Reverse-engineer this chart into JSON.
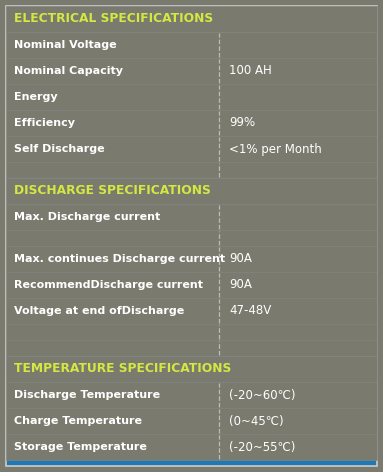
{
  "bg_color": "#7a7a6e",
  "header_text_color": "#d4e842",
  "row_text_color": "#ffffff",
  "value_text_color": "#ffffff",
  "border_color": "#888880",
  "divider_color": "#bbbbbb",
  "outer_border_color": "#cccccc",
  "col_split": 0.575,
  "sections": [
    {
      "header": "ELECTRICAL SPECIFICATIONS",
      "rows": [
        {
          "label": "Nominal Voltage",
          "value": "",
          "gap": false
        },
        {
          "label": "Nominal Capacity",
          "value": "100 AH",
          "gap": false
        },
        {
          "label": "Energy",
          "value": "",
          "gap": false
        },
        {
          "label": "Efficiency",
          "value": "99%",
          "gap": false
        },
        {
          "label": "Self Discharge",
          "value": "<1% per Month",
          "gap": false
        },
        {
          "label": "",
          "value": "",
          "gap": true
        }
      ]
    },
    {
      "header": "DISCHARGE SPECIFICATIONS",
      "rows": [
        {
          "label": "Max. Discharge current",
          "value": "",
          "gap": false
        },
        {
          "label": "",
          "value": "",
          "gap": true
        },
        {
          "label": "Max. continues Discharge current",
          "value": "90A",
          "gap": false
        },
        {
          "label": "RecommendDischarge current",
          "value": "90A",
          "gap": false
        },
        {
          "label": "Voltage at end ofDischarge",
          "value": "47-48V",
          "gap": false
        },
        {
          "label": "",
          "value": "",
          "gap": true
        },
        {
          "label": "",
          "value": "",
          "gap": true
        }
      ]
    },
    {
      "header": "TEMPERATURE SPECIFICATIONS",
      "rows": [
        {
          "label": "Discharge Temperature",
          "value": "(-20~60℃)",
          "gap": false
        },
        {
          "label": "Charge Temperature",
          "value": "(0~45℃)",
          "gap": false
        },
        {
          "label": "Storage Temperature",
          "value": "(-20~55℃)",
          "gap": false
        }
      ]
    }
  ],
  "font_size_header": 8.8,
  "font_size_row": 8.0,
  "font_size_value": 8.5
}
